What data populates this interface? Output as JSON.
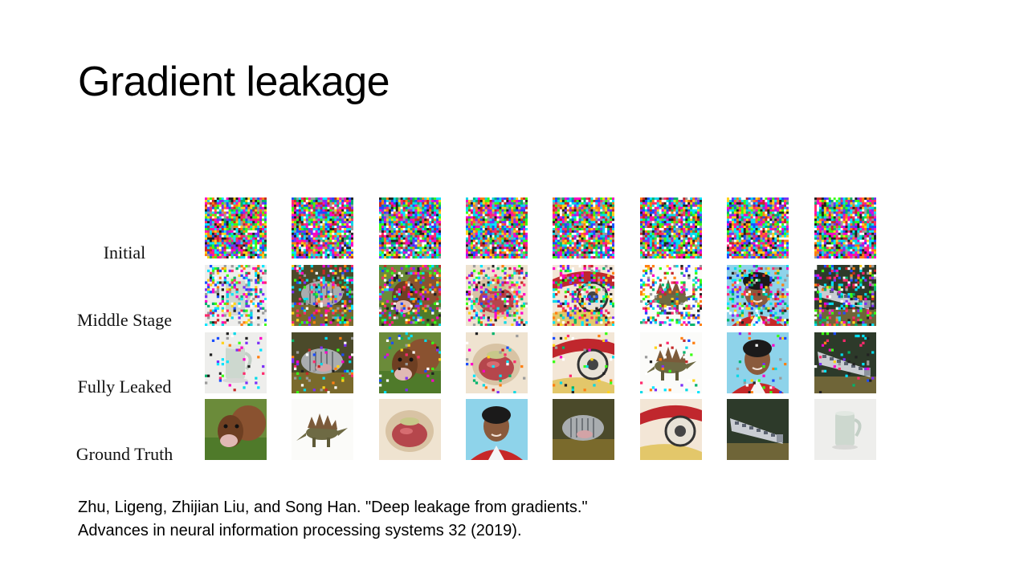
{
  "slide": {
    "title": "Gradient leakage",
    "row_labels": [
      "Initial",
      "Middle Stage",
      "Fully Leaked",
      "Ground Truth"
    ],
    "citation_lines": [
      "Zhu, Ligeng, Zhijian Liu, and Song Han. \"Deep leakage from gradients.\"",
      "Advances in neural information processing systems 32 (2019)."
    ]
  },
  "images": {
    "columns": 8,
    "rows": [
      {
        "stage": "initial",
        "tiles": [
          "noise",
          "noise",
          "noise",
          "noise",
          "noise",
          "noise",
          "noise",
          "noise"
        ]
      },
      {
        "stage": "middle",
        "tiles": [
          "mug",
          "fish",
          "cow",
          "apple",
          "telephone",
          "stegosaurus",
          "boy",
          "train"
        ]
      },
      {
        "stage": "fully-leaked",
        "tiles": [
          "mug",
          "fish",
          "cow",
          "apple",
          "telephone",
          "stegosaurus",
          "boy",
          "train"
        ]
      },
      {
        "stage": "ground-truth",
        "tiles": [
          "cow",
          "stegosaurus",
          "apple",
          "boy",
          "fish",
          "telephone",
          "train",
          "mug"
        ]
      }
    ]
  }
}
